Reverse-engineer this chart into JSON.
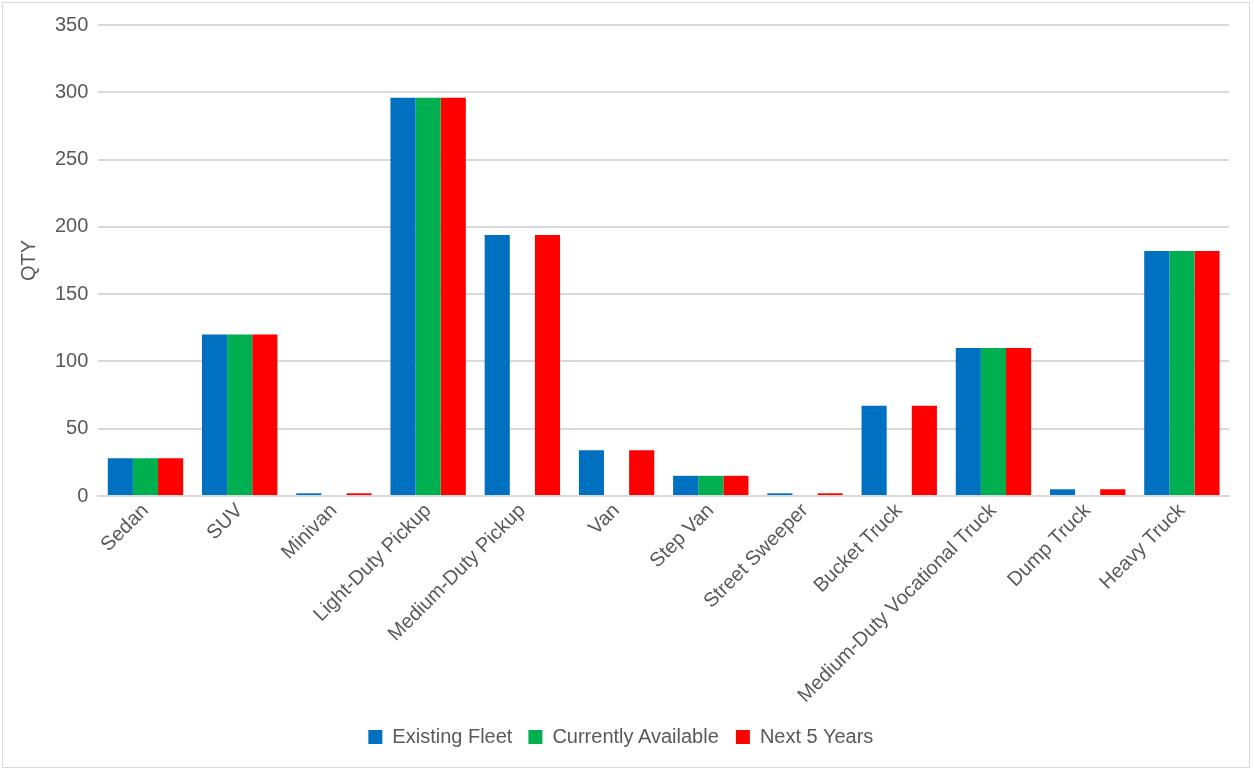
{
  "chart_data": {
    "type": "bar",
    "ylabel": "QTY",
    "categories": [
      "Sedan",
      "SUV",
      "Minivan",
      "Light-Duty Pickup",
      "Medium-Duty Pickup",
      "Van",
      "Step Van",
      "Street Sweeper",
      "Bucket Truck",
      "Medium-Duty Vocational Truck",
      "Dump Truck",
      "Heavy Truck"
    ],
    "series": [
      {
        "name": "Existing Fleet",
        "color": "#0070c0",
        "values": [
          28,
          120,
          2,
          296,
          194,
          34,
          15,
          2,
          67,
          110,
          5,
          182
        ]
      },
      {
        "name": "Currently Available",
        "color": "#00b050",
        "values": [
          28,
          120,
          0,
          296,
          0,
          0,
          15,
          0,
          0,
          110,
          0,
          182
        ]
      },
      {
        "name": "Next 5 Years",
        "color": "#ff0000",
        "values": [
          28,
          120,
          2,
          296,
          194,
          34,
          15,
          2,
          67,
          110,
          5,
          182
        ]
      }
    ],
    "ylim": [
      0,
      350
    ],
    "yticks": [
      0,
      50,
      100,
      150,
      200,
      250,
      300,
      350
    ],
    "grid": "y",
    "legend": "bottom"
  }
}
